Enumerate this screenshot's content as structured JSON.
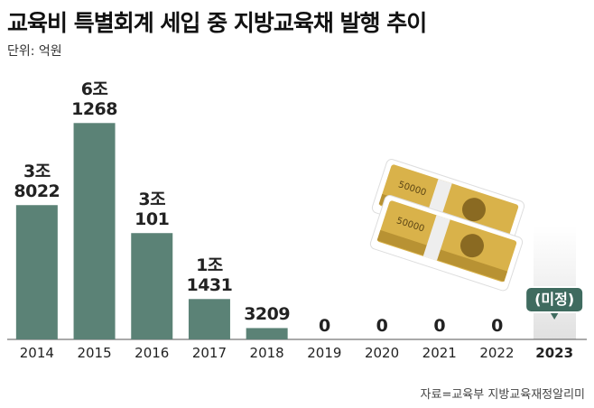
{
  "chart_data": {
    "type": "bar",
    "title": "교육비 특별회계 세입 중 지방교육채 발행 추이",
    "subtitle": "단위: 억원",
    "source": "자료=교육부 지방교육재정알리미",
    "categories": [
      "2014",
      "2015",
      "2016",
      "2017",
      "2018",
      "2019",
      "2020",
      "2021",
      "2022",
      "2023"
    ],
    "values": [
      38022,
      61268,
      30101,
      11431,
      3209,
      0,
      0,
      0,
      0,
      null
    ],
    "value_labels": [
      "3조\n8022",
      "6조\n1268",
      "3조\n101",
      "1조\n1431",
      "3209",
      "0",
      "0",
      "0",
      "0",
      null
    ],
    "annotation": "(미정)",
    "color": "#5b8276",
    "ylim": [
      0,
      80000
    ]
  }
}
